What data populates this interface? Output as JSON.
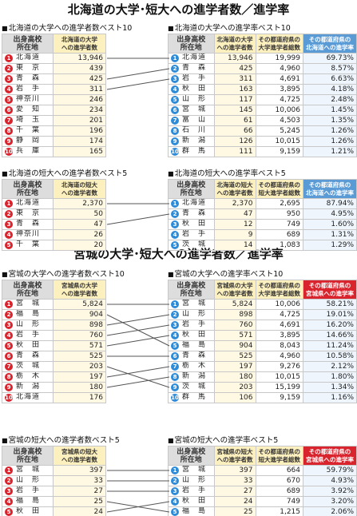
{
  "titles": {
    "hokkaido": "北海道の大学･短大への進学者数／進学率",
    "miyagi": "宮城の大学･短大への進学者数／進学率"
  },
  "headers": {
    "pref": "出身高校\n所在地",
    "hk_uni_num": "北海道の大学\nへの進学者数",
    "hk_jc_num": "北海道の短大\nへの進学者数",
    "hk_rate": "その都道府県の\n北海道への進学率",
    "mg_uni_num": "宮城県の大学\nへの進学者数",
    "mg_jc_num": "宮城県の短大\nへの進学者数",
    "mg_rate": "その都道府県の\n宮城県への進学率",
    "uni_total": "その都道府県の\n大学進学者総数",
    "jc_total": "その都道府県の\n短大進学者総数"
  },
  "sections": {
    "hk_uni_num": {
      "label": "北海道の大学への進学者数ベスト10",
      "rows": [
        {
          "rank": "1",
          "pref": "北海道",
          "value": "13,946"
        },
        {
          "rank": "2",
          "pref": "東　京",
          "value": "439"
        },
        {
          "rank": "3",
          "pref": "青　森",
          "value": "425"
        },
        {
          "rank": "4",
          "pref": "岩　手",
          "value": "311"
        },
        {
          "rank": "5",
          "pref": "神奈川",
          "value": "246"
        },
        {
          "rank": "6",
          "pref": "愛　知",
          "value": "234"
        },
        {
          "rank": "7",
          "pref": "埼　玉",
          "value": "201"
        },
        {
          "rank": "8",
          "pref": "千　葉",
          "value": "196"
        },
        {
          "rank": "9",
          "pref": "静　岡",
          "value": "174"
        },
        {
          "rank": "10",
          "pref": "兵　庫",
          "value": "165"
        }
      ]
    },
    "hk_uni_rate": {
      "label": "北海道の大学への進学率ベスト10",
      "rows": [
        {
          "rank": "1",
          "pref": "北海道",
          "value": "13,946",
          "total": "19,999",
          "rate": "69.73%"
        },
        {
          "rank": "2",
          "pref": "青　森",
          "value": "425",
          "total": "4,960",
          "rate": "8.57%"
        },
        {
          "rank": "3",
          "pref": "岩　手",
          "value": "311",
          "total": "4,691",
          "rate": "6.63%"
        },
        {
          "rank": "4",
          "pref": "秋　田",
          "value": "163",
          "total": "3,895",
          "rate": "4.18%"
        },
        {
          "rank": "5",
          "pref": "山　形",
          "value": "117",
          "total": "4,725",
          "rate": "2.48%"
        },
        {
          "rank": "6",
          "pref": "宮　城",
          "value": "145",
          "total": "10,006",
          "rate": "1.45%"
        },
        {
          "rank": "7",
          "pref": "富　山",
          "value": "61",
          "total": "4,503",
          "rate": "1.35%"
        },
        {
          "rank": "8",
          "pref": "石　川",
          "value": "66",
          "total": "5,245",
          "rate": "1.26%"
        },
        {
          "rank": "9",
          "pref": "新　潟",
          "value": "126",
          "total": "10,015",
          "rate": "1.26%"
        },
        {
          "rank": "10",
          "pref": "群　馬",
          "value": "111",
          "total": "9,159",
          "rate": "1.21%"
        }
      ]
    },
    "hk_jc_num": {
      "label": "北海道の短大への進学者数ベスト5",
      "rows": [
        {
          "rank": "1",
          "pref": "北海道",
          "value": "2,370"
        },
        {
          "rank": "2",
          "pref": "東　京",
          "value": "50"
        },
        {
          "rank": "3",
          "pref": "青　森",
          "value": "47"
        },
        {
          "rank": "4",
          "pref": "神奈川",
          "value": "26"
        },
        {
          "rank": "5",
          "pref": "千　葉",
          "value": "20"
        }
      ]
    },
    "hk_jc_rate": {
      "label": "北海道の短大への進学率ベスト5",
      "rows": [
        {
          "rank": "1",
          "pref": "北海道",
          "value": "2,370",
          "total": "2,695",
          "rate": "87.94%"
        },
        {
          "rank": "2",
          "pref": "青　森",
          "value": "47",
          "total": "950",
          "rate": "4.95%"
        },
        {
          "rank": "3",
          "pref": "秋　田",
          "value": "12",
          "total": "749",
          "rate": "1.60%"
        },
        {
          "rank": "4",
          "pref": "岩　手",
          "value": "9",
          "total": "689",
          "rate": "1.31%"
        },
        {
          "rank": "5",
          "pref": "茨　城",
          "value": "14",
          "total": "1,083",
          "rate": "1.29%"
        }
      ]
    },
    "mg_uni_num": {
      "label": "宮城の大学への進学者数ベスト10",
      "rows": [
        {
          "rank": "1",
          "pref": "宮　城",
          "value": "5,824"
        },
        {
          "rank": "2",
          "pref": "福　島",
          "value": "904"
        },
        {
          "rank": "3",
          "pref": "山　形",
          "value": "898"
        },
        {
          "rank": "4",
          "pref": "岩　手",
          "value": "760"
        },
        {
          "rank": "5",
          "pref": "秋　田",
          "value": "571"
        },
        {
          "rank": "6",
          "pref": "青　森",
          "value": "525"
        },
        {
          "rank": "7",
          "pref": "茨　城",
          "value": "203"
        },
        {
          "rank": "8",
          "pref": "栃　木",
          "value": "197"
        },
        {
          "rank": "9",
          "pref": "新　潟",
          "value": "180"
        },
        {
          "rank": "10",
          "pref": "北海道",
          "value": "176"
        }
      ]
    },
    "mg_uni_rate": {
      "label": "宮城の大学への進学率ベスト10",
      "rows": [
        {
          "rank": "1",
          "pref": "宮　城",
          "value": "5,824",
          "total": "10,006",
          "rate": "58.21%"
        },
        {
          "rank": "2",
          "pref": "山　形",
          "value": "898",
          "total": "4,725",
          "rate": "19.01%"
        },
        {
          "rank": "3",
          "pref": "岩　手",
          "value": "760",
          "total": "4,691",
          "rate": "16.20%"
        },
        {
          "rank": "4",
          "pref": "秋　田",
          "value": "571",
          "total": "3,895",
          "rate": "14.66%"
        },
        {
          "rank": "5",
          "pref": "福　島",
          "value": "904",
          "total": "8,043",
          "rate": "11.24%"
        },
        {
          "rank": "6",
          "pref": "青　森",
          "value": "525",
          "total": "4,960",
          "rate": "10.58%"
        },
        {
          "rank": "7",
          "pref": "栃　木",
          "value": "197",
          "total": "9,276",
          "rate": "2.12%"
        },
        {
          "rank": "8",
          "pref": "新　潟",
          "value": "180",
          "total": "10,015",
          "rate": "1.80%"
        },
        {
          "rank": "9",
          "pref": "茨　城",
          "value": "203",
          "total": "15,199",
          "rate": "1.34%"
        },
        {
          "rank": "10",
          "pref": "群　馬",
          "value": "106",
          "total": "9,159",
          "rate": "1.16%"
        }
      ]
    },
    "mg_jc_num": {
      "label": "宮城の短大への進学者数ベスト5",
      "rows": [
        {
          "rank": "1",
          "pref": "宮　城",
          "value": "397"
        },
        {
          "rank": "2",
          "pref": "山　形",
          "value": "33"
        },
        {
          "rank": "3",
          "pref": "岩　手",
          "value": "27"
        },
        {
          "rank": "4",
          "pref": "福　島",
          "value": "25"
        },
        {
          "rank": "5",
          "pref": "秋　田",
          "value": "24"
        }
      ]
    },
    "mg_jc_rate": {
      "label": "宮城の短大への進学率ベスト5",
      "rows": [
        {
          "rank": "1",
          "pref": "宮　城",
          "value": "397",
          "total": "664",
          "rate": "59.79%"
        },
        {
          "rank": "2",
          "pref": "山　形",
          "value": "33",
          "total": "670",
          "rate": "4.93%"
        },
        {
          "rank": "3",
          "pref": "岩　手",
          "value": "27",
          "total": "689",
          "rate": "3.92%"
        },
        {
          "rank": "4",
          "pref": "秋　田",
          "value": "24",
          "total": "749",
          "rate": "3.20%"
        },
        {
          "rank": "5",
          "pref": "福　島",
          "value": "25",
          "total": "1,215",
          "rate": "2.06%"
        }
      ]
    }
  },
  "colors": {
    "rank_left": "#d9232d",
    "rank_right": "#2e8bd8",
    "hk_rate_header": "#5b9bd5",
    "mg_rate_header": "#d9232d",
    "num_header": "#fdf0bf",
    "line": "#555555"
  }
}
